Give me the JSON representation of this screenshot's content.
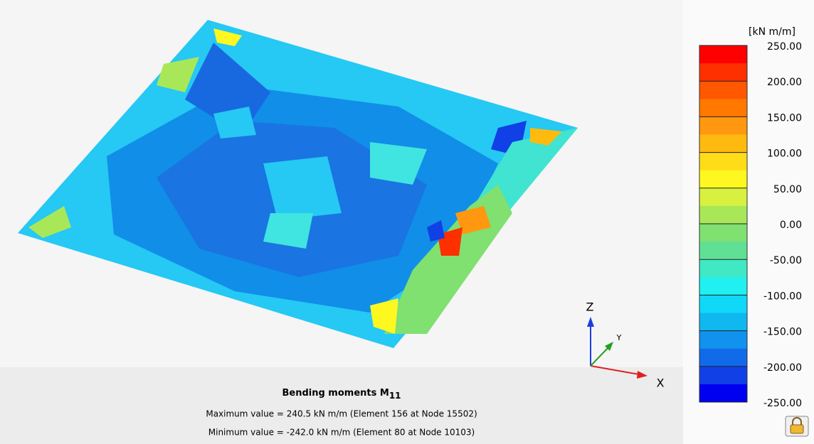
{
  "view": {
    "axes": {
      "z": "Z",
      "y": "Y",
      "x": "X"
    }
  },
  "info": {
    "title": "Bending moments M",
    "title_subscript": "11",
    "max_line": "Maximum value = 240.5 kN m/m (Element 156 at Node 15502)",
    "min_line": "Minimum value = -242.0 kN m/m (Element 80 at Node 10103)"
  },
  "legend": {
    "unit": "[kN m/m]",
    "labels": [
      "250.00",
      "200.00",
      "150.00",
      "100.00",
      "50.00",
      "0.00",
      "-50.00",
      "-100.00",
      "-150.00",
      "-200.00",
      "-250.00"
    ],
    "colors": [
      "#ff0000",
      "#ff3000",
      "#ff5800",
      "#ff7800",
      "#ff9810",
      "#ffba10",
      "#ffdc18",
      "#fff820",
      "#d8f040",
      "#a8e858",
      "#80e070",
      "#60e094",
      "#40e8c4",
      "#20f0f0",
      "#10d8f8",
      "#10b8f0",
      "#1092ee",
      "#106aea",
      "#1040e6",
      "#0000f0"
    ]
  }
}
